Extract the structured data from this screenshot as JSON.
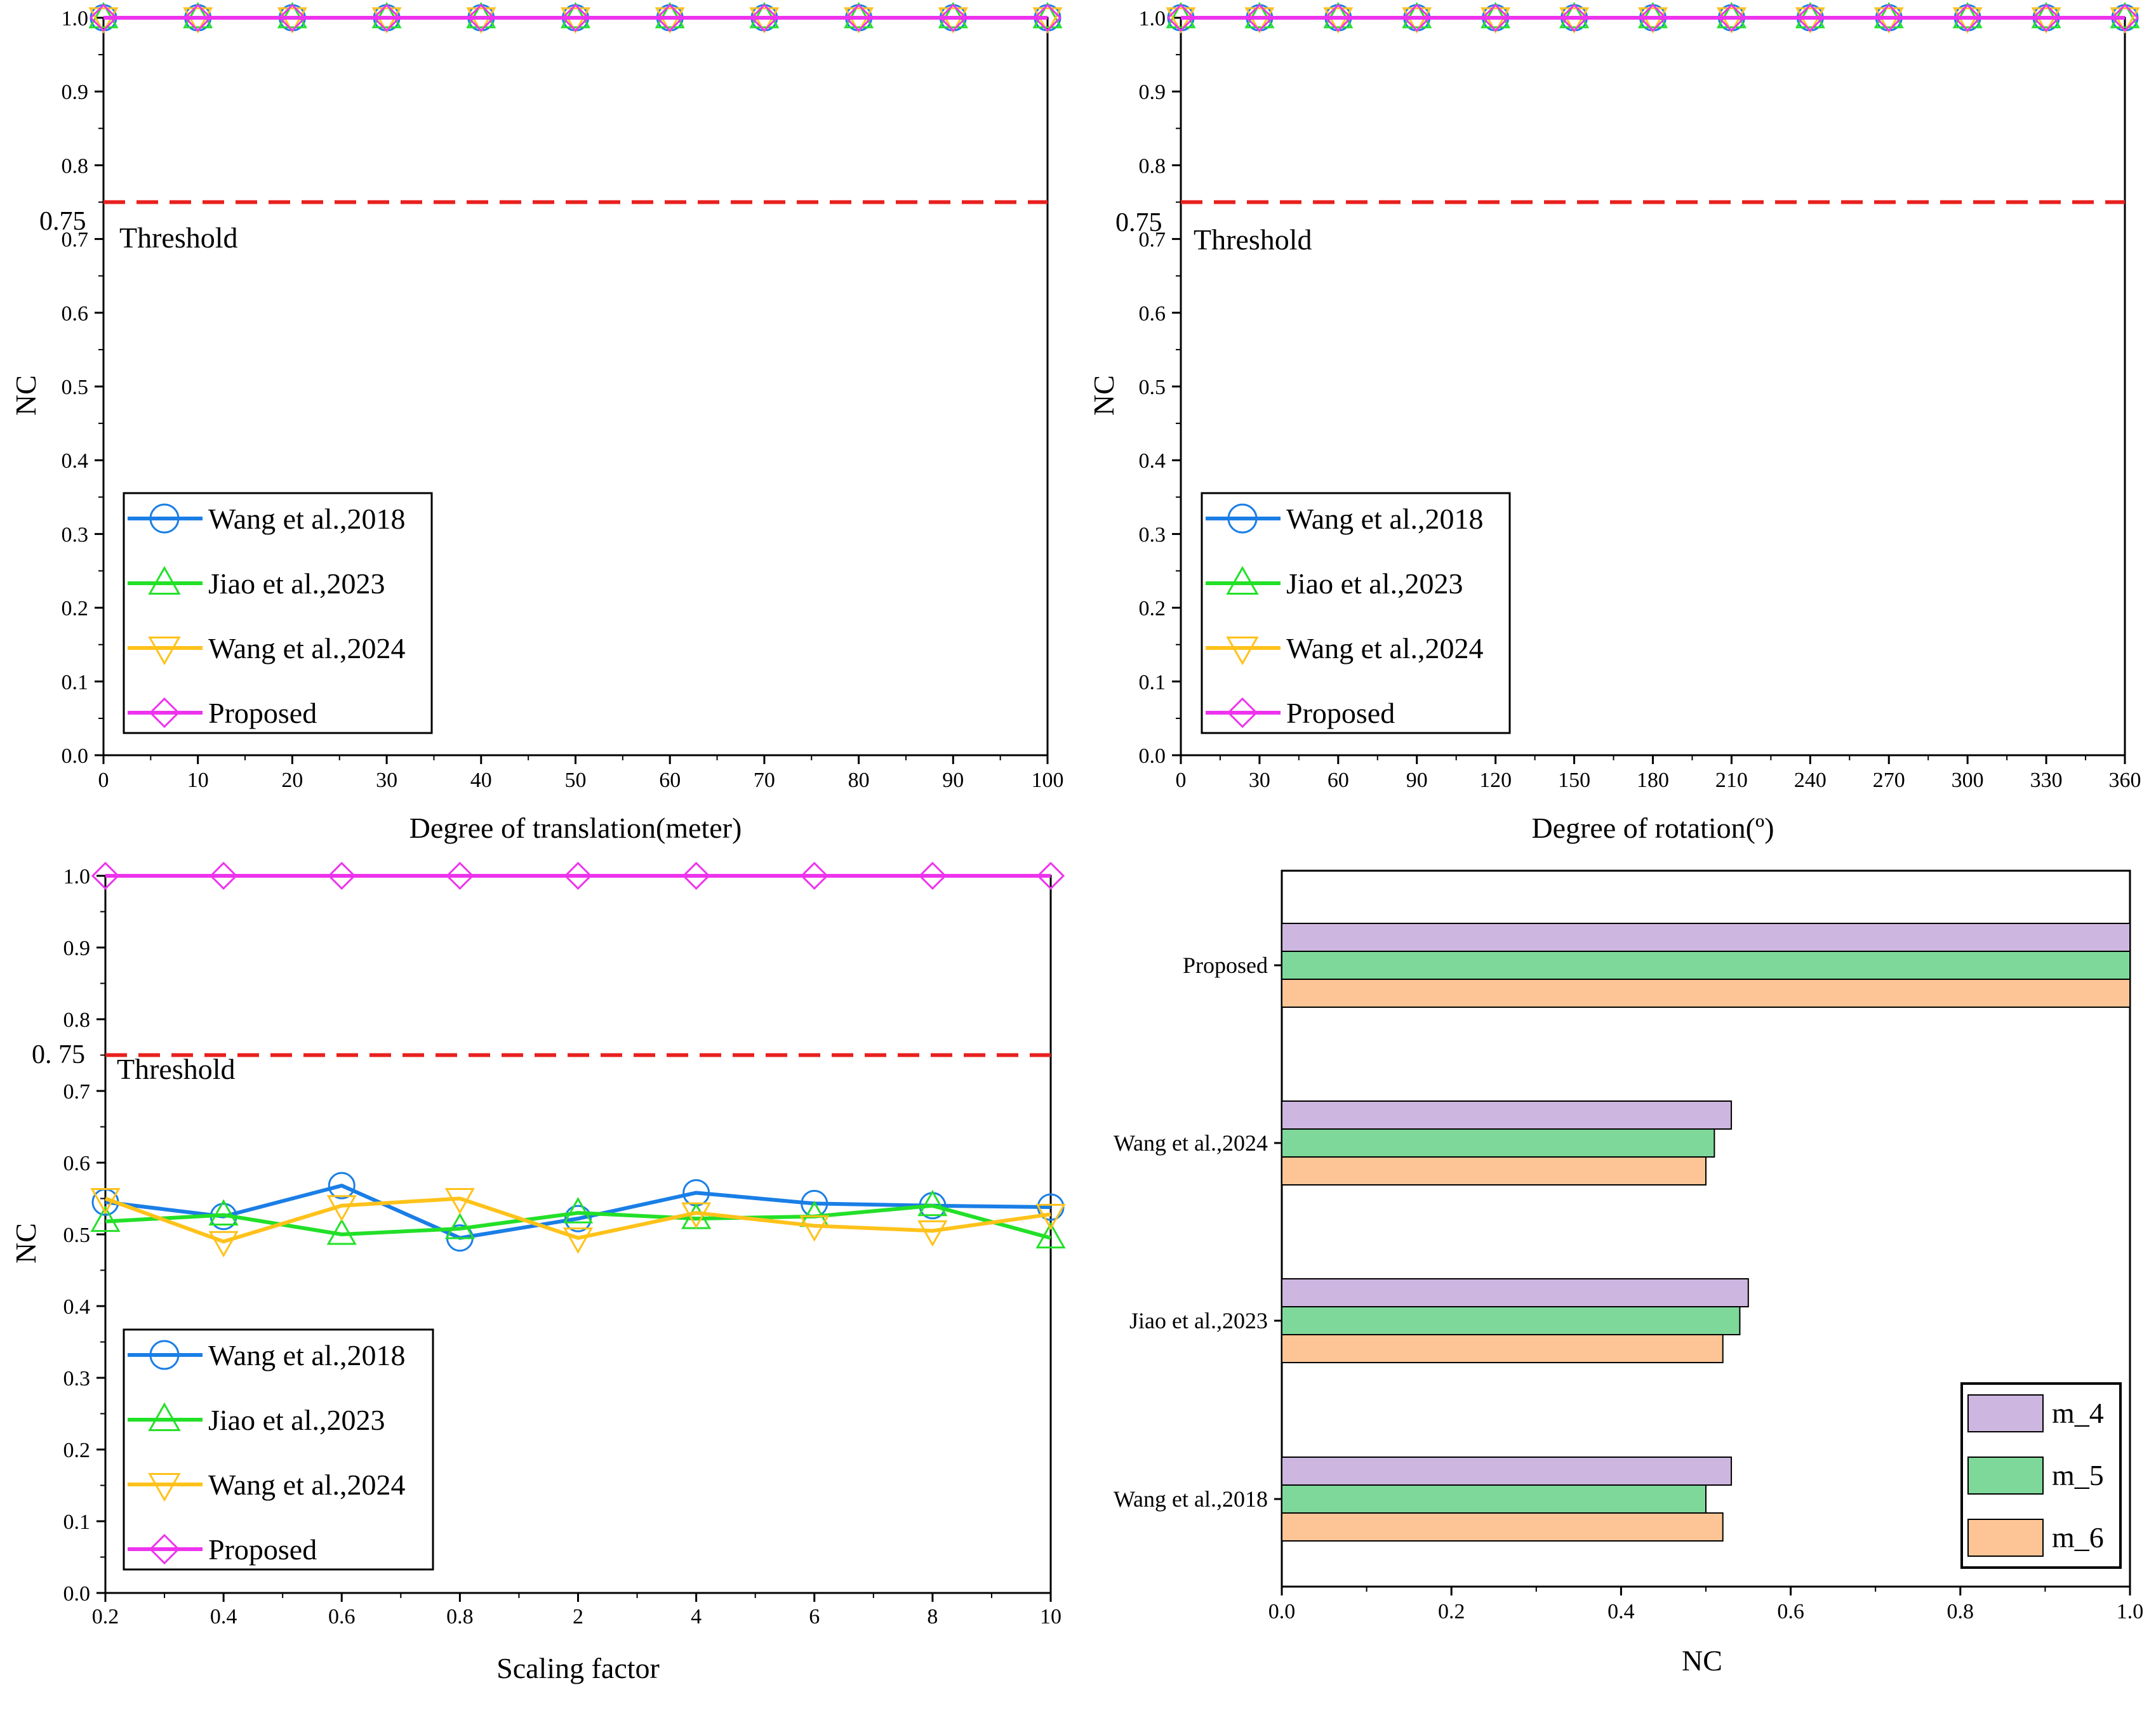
{
  "colors": {
    "wang2018": "#1a7ee6",
    "jiao2023": "#22e028",
    "wang2024": "#ffc21a",
    "proposed": "#ee33ee",
    "threshold": "#e8201e",
    "m4": "#cdb6e0",
    "m5": "#7dd89a",
    "m6": "#fdc596"
  },
  "chart_data": [
    {
      "type": "line",
      "panel": "translation",
      "xlabel": "Degree of translation(meter)",
      "ylabel": "NC",
      "x_ticks": [
        "0",
        "10",
        "20",
        "30",
        "40",
        "50",
        "60",
        "70",
        "80",
        "90",
        "100"
      ],
      "y_ticks": [
        "0.0",
        "0.1",
        "0.2",
        "0.3",
        "0.4",
        "0.5",
        "0.6",
        "0.7",
        "0.8",
        "0.9",
        "1.0"
      ],
      "ylim": [
        0,
        1.0
      ],
      "threshold": {
        "value": 0.75,
        "value_label": "0.75",
        "label": "Threshold"
      },
      "legend_position": "bottom-left",
      "series": [
        {
          "name": "Wang et al.,2018",
          "key": "wang2018",
          "marker": "circle",
          "values": [
            1,
            1,
            1,
            1,
            1,
            1,
            1,
            1,
            1,
            1,
            1
          ]
        },
        {
          "name": "Jiao et al.,2023",
          "key": "jiao2023",
          "marker": "triangle-up",
          "values": [
            1,
            1,
            1,
            1,
            1,
            1,
            1,
            1,
            1,
            1,
            1
          ]
        },
        {
          "name": "Wang et al.,2024",
          "key": "wang2024",
          "marker": "triangle-down",
          "values": [
            1,
            1,
            1,
            1,
            1,
            1,
            1,
            1,
            1,
            1,
            1
          ]
        },
        {
          "name": "Proposed",
          "key": "proposed",
          "marker": "diamond",
          "values": [
            1,
            1,
            1,
            1,
            1,
            1,
            1,
            1,
            1,
            1,
            1
          ]
        }
      ]
    },
    {
      "type": "line",
      "panel": "rotation",
      "xlabel": "Degree of rotation(º)",
      "ylabel": "NC",
      "x_ticks": [
        "0",
        "30",
        "60",
        "90",
        "120",
        "150",
        "180",
        "210",
        "240",
        "270",
        "300",
        "330",
        "360"
      ],
      "y_ticks": [
        "0.0",
        "0.1",
        "0.2",
        "0.3",
        "0.4",
        "0.5",
        "0.6",
        "0.7",
        "0.8",
        "0.9",
        "1.0"
      ],
      "ylim": [
        0,
        1.0
      ],
      "threshold": {
        "value": 0.75,
        "value_label": "0.75",
        "label": "Threshold"
      },
      "legend_position": "bottom-left",
      "series": [
        {
          "name": "Wang et al.,2018",
          "key": "wang2018",
          "marker": "circle",
          "values": [
            1,
            1,
            1,
            1,
            1,
            1,
            1,
            1,
            1,
            1,
            1,
            1,
            1
          ]
        },
        {
          "name": "Jiao et al.,2023",
          "key": "jiao2023",
          "marker": "triangle-up",
          "values": [
            1,
            1,
            1,
            1,
            1,
            1,
            1,
            1,
            1,
            1,
            1,
            1,
            1
          ]
        },
        {
          "name": "Wang et al.,2024",
          "key": "wang2024",
          "marker": "triangle-down",
          "values": [
            1,
            1,
            1,
            1,
            1,
            1,
            1,
            1,
            1,
            1,
            1,
            1,
            1
          ]
        },
        {
          "name": "Proposed",
          "key": "proposed",
          "marker": "diamond",
          "values": [
            1,
            1,
            1,
            1,
            1,
            1,
            1,
            1,
            1,
            1,
            1,
            1,
            1
          ]
        }
      ]
    },
    {
      "type": "line",
      "panel": "scaling",
      "xlabel": "Scaling factor",
      "ylabel": "NC",
      "x_ticks": [
        "0.2",
        "0.4",
        "0.6",
        "0.8",
        "2",
        "4",
        "6",
        "8",
        "10"
      ],
      "y_ticks": [
        "0.0",
        "0.1",
        "0.2",
        "0.3",
        "0.4",
        "0.5",
        "0.6",
        "0.7",
        "0.8",
        "0.9",
        "1.0"
      ],
      "ylim": [
        0,
        1.0
      ],
      "threshold": {
        "value": 0.75,
        "value_label": "0. 75",
        "label": "Threshold"
      },
      "legend_position": "bottom-left",
      "series": [
        {
          "name": "Wang et al.,2018",
          "key": "wang2018",
          "marker": "circle",
          "values": [
            0.545,
            0.525,
            0.568,
            0.495,
            0.522,
            0.558,
            0.543,
            0.54,
            0.538
          ]
        },
        {
          "name": "Jiao et al.,2023",
          "key": "jiao2023",
          "marker": "triangle-up",
          "values": [
            0.518,
            0.527,
            0.5,
            0.508,
            0.53,
            0.522,
            0.525,
            0.54,
            0.495
          ]
        },
        {
          "name": "Wang et al.,2024",
          "key": "wang2024",
          "marker": "triangle-down",
          "values": [
            0.55,
            0.49,
            0.54,
            0.55,
            0.495,
            0.53,
            0.512,
            0.505,
            0.528
          ]
        },
        {
          "name": "Proposed",
          "key": "proposed",
          "marker": "diamond",
          "values": [
            1,
            1,
            1,
            1,
            1,
            1,
            1,
            1,
            1
          ]
        }
      ]
    },
    {
      "type": "bar",
      "orientation": "horizontal",
      "panel": "comparison",
      "xlabel": "NC",
      "x_ticks": [
        "0.0",
        "0.2",
        "0.4",
        "0.6",
        "0.8",
        "1.0"
      ],
      "xlim": [
        0,
        1.0
      ],
      "categories": [
        "Proposed",
        "Wang et al.,2024",
        "Jiao et al.,2023",
        "Wang et al.,2018"
      ],
      "legend_position": "bottom-right",
      "series": [
        {
          "name": "m_4",
          "key": "m4",
          "values": [
            1.0,
            0.53,
            0.55,
            0.53
          ]
        },
        {
          "name": "m_5",
          "key": "m5",
          "values": [
            1.0,
            0.51,
            0.54,
            0.5
          ]
        },
        {
          "name": "m_6",
          "key": "m6",
          "values": [
            1.0,
            0.5,
            0.52,
            0.52
          ]
        }
      ]
    }
  ]
}
